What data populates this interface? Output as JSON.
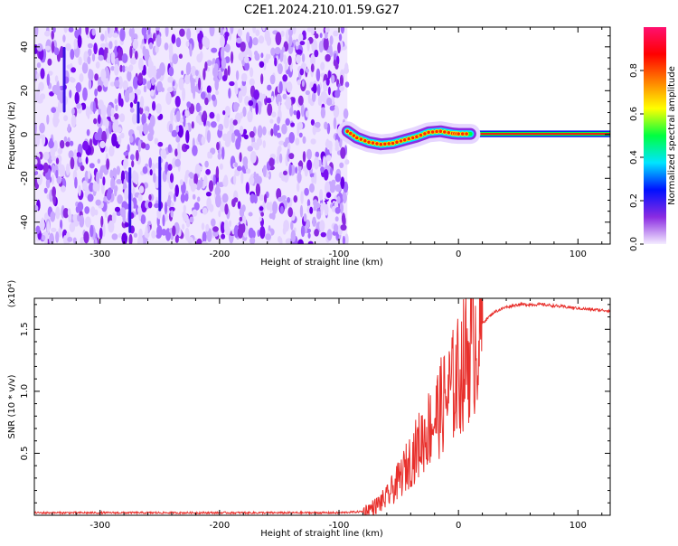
{
  "title": "C2E1.2024.210.01.59.G27",
  "chart_data": [
    {
      "type": "heatmap",
      "xlabel": "Height of straight line (km)",
      "ylabel": "Frequency (Hz)",
      "xlim": [
        -355,
        127
      ],
      "ylim": [
        -50,
        49
      ],
      "x_ticks": [
        -300,
        -200,
        -100,
        0,
        100
      ],
      "x_tick_labels": [
        "-300",
        "-200",
        "-100",
        "0",
        "100"
      ],
      "y_ticks": [
        -40,
        -20,
        0,
        20,
        40
      ],
      "y_tick_labels": [
        "-40",
        "-20",
        "0",
        "20",
        "40"
      ],
      "noise_region_x": [
        -355,
        -93
      ],
      "signal_ridge": {
        "x": [
          -93,
          -85,
          -75,
          -65,
          -55,
          -45,
          -35,
          -25,
          -15,
          -5,
          0,
          10,
          20,
          127
        ],
        "y": [
          1.5,
          -1.5,
          -3.5,
          -4.5,
          -4,
          -2.5,
          -1,
          1,
          1.5,
          0.5,
          0.3,
          0.3,
          0.3,
          0.3
        ]
      },
      "colorbar": {
        "label": "Normalized spectral amplitude",
        "range": [
          0,
          1
        ],
        "ticks": [
          0.0,
          0.2,
          0.4,
          0.6,
          0.8
        ],
        "tick_labels": [
          "0.0",
          "0.2",
          "0.4",
          "0.6",
          "0.8"
        ],
        "colors": [
          "#f4ecff",
          "#8a2be2",
          "#0010ff",
          "#00e5ff",
          "#00ff40",
          "#ffff00",
          "#ff8000",
          "#ff0000",
          "#ff1070"
        ]
      }
    },
    {
      "type": "line",
      "xlabel": "Height of straight line (km)",
      "ylabel": "SNR (10 * v/v)",
      "y_multiplier": "(x10⁴)",
      "xlim": [
        -355,
        127
      ],
      "ylim": [
        0,
        1.75
      ],
      "x_ticks": [
        -300,
        -200,
        -100,
        0,
        100
      ],
      "x_tick_labels": [
        "-300",
        "-200",
        "-100",
        "0",
        "100"
      ],
      "y_ticks": [
        0.5,
        1.0,
        1.5
      ],
      "y_tick_labels": [
        "0.5",
        "1.0",
        "1.5"
      ],
      "line_color": "#e8302c",
      "series": [
        {
          "x": [
            -355,
            -300,
            -200,
            -130,
            -100,
            -80,
            -70,
            -60,
            -50,
            -40,
            -30,
            -20,
            -10,
            0,
            10,
            20,
            30,
            40,
            50,
            60,
            70,
            80,
            90,
            100,
            110,
            127
          ],
          "y": [
            0.02,
            0.02,
            0.02,
            0.02,
            0.02,
            0.03,
            0.07,
            0.14,
            0.28,
            0.45,
            0.62,
            0.78,
            0.95,
            1.12,
            1.35,
            1.55,
            1.64,
            1.68,
            1.7,
            1.7,
            1.7,
            1.69,
            1.68,
            1.67,
            1.66,
            1.65
          ]
        }
      ]
    }
  ]
}
